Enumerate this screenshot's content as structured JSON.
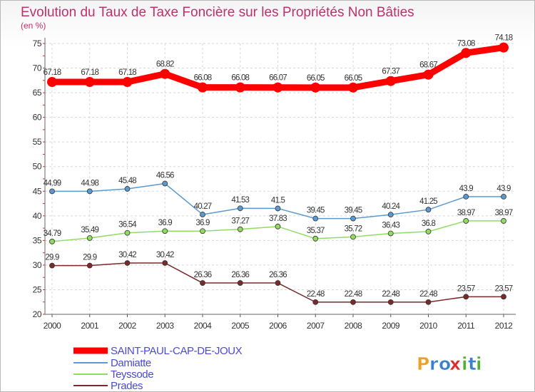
{
  "chart_data": {
    "type": "line",
    "title": "Evolution du Taux de Taxe Foncière sur les Propriétés Non Bâties",
    "unit_label": "(en %)",
    "x": [
      "2000",
      "2001",
      "2002",
      "2003",
      "2004",
      "2005",
      "2006",
      "2007",
      "2008",
      "2009",
      "2010",
      "2011",
      "2012"
    ],
    "ylim": [
      20,
      75
    ],
    "yticks": [
      20,
      25,
      30,
      35,
      40,
      45,
      50,
      55,
      60,
      65,
      70,
      75
    ],
    "grid": true,
    "series": [
      {
        "name": "SAINT-PAUL-CAP-DE-JOUX",
        "color": "#ff0000",
        "values": [
          67.18,
          67.18,
          67.18,
          68.82,
          66.08,
          66.08,
          66.07,
          66.05,
          66.05,
          67.37,
          68.67,
          73.08,
          74.18
        ],
        "labels": [
          "67.18",
          "67.18",
          "67.18",
          "68.82",
          "66.08",
          "66.08",
          "66.07",
          "66.05",
          "66.05",
          "67.37",
          "68.67",
          "73.08",
          "74.18"
        ]
      },
      {
        "name": "Damiatte",
        "color": "#5a9ad0",
        "values": [
          44.99,
          44.98,
          45.48,
          46.56,
          40.27,
          41.53,
          41.5,
          39.45,
          39.45,
          40.24,
          41.25,
          43.9,
          43.9
        ],
        "labels": [
          "44.99",
          "44.98",
          "45.48",
          "46.56",
          "40.27",
          "41.53",
          "41.5",
          "39.45",
          "39.45",
          "40.24",
          "41.25",
          "43.9",
          "43.9"
        ]
      },
      {
        "name": "Teyssode",
        "color": "#90dc60",
        "values": [
          34.79,
          35.49,
          36.54,
          36.9,
          36.9,
          37.27,
          37.83,
          35.37,
          35.72,
          36.43,
          36.8,
          38.97,
          38.97
        ],
        "labels": [
          "34.79",
          "35.49",
          "36.54",
          "36.9",
          "36.9",
          "37.27",
          "37.83",
          "35.37",
          "35.72",
          "36.43",
          "36.8",
          "38.97",
          "38.97"
        ]
      },
      {
        "name": "Prades",
        "color": "#7a2a2a",
        "values": [
          29.9,
          29.9,
          30.42,
          30.42,
          26.36,
          26.36,
          26.36,
          22.48,
          22.48,
          22.48,
          22.48,
          23.57,
          23.57
        ],
        "labels": [
          "29.9",
          "29.9",
          "30.42",
          "30.42",
          "26.36",
          "26.36",
          "26.36",
          "22.48",
          "22.48",
          "22.48",
          "22.48",
          "23.57",
          "23.57"
        ]
      }
    ]
  },
  "logo": {
    "text": "Proxiti",
    "letters": [
      "P",
      "r",
      "o",
      "x",
      "i",
      "t",
      "i"
    ],
    "colors": [
      "#f0a020",
      "#3a7fd0",
      "#3a7fd0",
      "#e02a2a",
      "#50b030",
      "#3a7fd0",
      "#50b030"
    ]
  }
}
